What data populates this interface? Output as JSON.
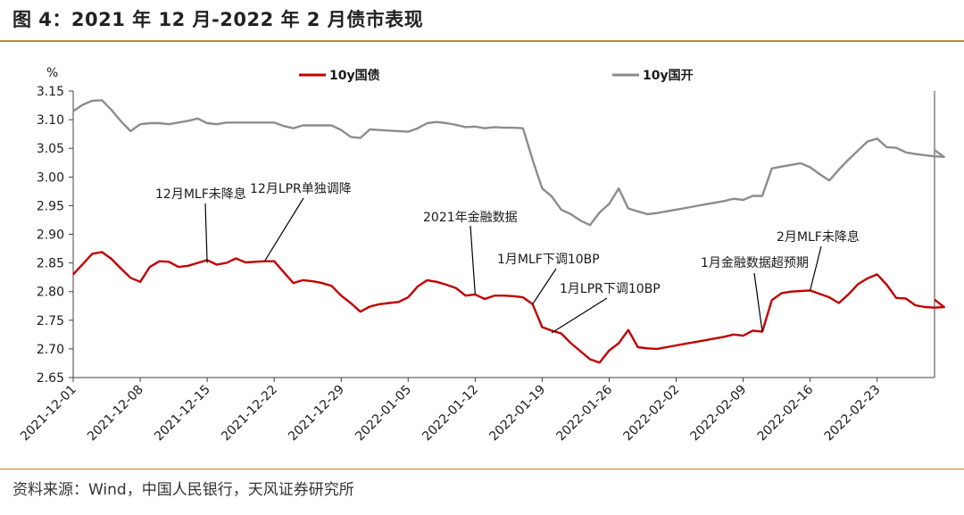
{
  "figure": {
    "title": "图 4：2021 年 12 月-2022 年 2 月债市表现",
    "source": "资料来源：Wind，中国人民银行，天风证券研究所"
  },
  "colors": {
    "red": "#c00000",
    "gray": "#8c8c8c",
    "accent_rule": "#c8843b"
  },
  "chart_data": {
    "type": "line",
    "ylabel": "%",
    "ylim": [
      2.65,
      3.15
    ],
    "yticks": [
      "3.15",
      "3.10",
      "3.05",
      "3.00",
      "2.95",
      "2.90",
      "2.85",
      "2.80",
      "2.75",
      "2.70",
      "2.65"
    ],
    "xrange": [
      "2021-12-01",
      "2022-03-01"
    ],
    "xticks": [
      "2021-12-01",
      "2021-12-08",
      "2021-12-15",
      "2021-12-22",
      "2021-12-29",
      "2022-01-05",
      "2022-01-12",
      "2022-01-19",
      "2022-01-26",
      "2022-02-02",
      "2022-02-09",
      "2022-02-16",
      "2022-02-23"
    ],
    "legend_position": "top",
    "grid": false,
    "series": [
      {
        "name": "10y国债",
        "color": "#c00000",
        "points": [
          [
            "2021-12-01",
            2.83
          ],
          [
            "2021-12-02",
            2.848
          ],
          [
            "2021-12-03",
            2.866
          ],
          [
            "2021-12-04",
            2.869
          ],
          [
            "2021-12-05",
            2.857
          ],
          [
            "2021-12-06",
            2.84
          ],
          [
            "2021-12-07",
            2.824
          ],
          [
            "2021-12-08",
            2.817
          ],
          [
            "2021-12-09",
            2.843
          ],
          [
            "2021-12-10",
            2.853
          ],
          [
            "2021-12-11",
            2.852
          ],
          [
            "2021-12-12",
            2.843
          ],
          [
            "2021-12-13",
            2.845
          ],
          [
            "2021-12-14",
            2.85
          ],
          [
            "2021-12-15",
            2.855
          ],
          [
            "2021-12-16",
            2.847
          ],
          [
            "2021-12-17",
            2.85
          ],
          [
            "2021-12-18",
            2.858
          ],
          [
            "2021-12-19",
            2.851
          ],
          [
            "2021-12-20",
            2.852
          ],
          [
            "2021-12-21",
            2.853
          ],
          [
            "2021-12-22",
            2.853
          ],
          [
            "2021-12-23",
            2.834
          ],
          [
            "2021-12-24",
            2.815
          ],
          [
            "2021-12-25",
            2.82
          ],
          [
            "2021-12-26",
            2.818
          ],
          [
            "2021-12-27",
            2.815
          ],
          [
            "2021-12-28",
            2.81
          ],
          [
            "2021-12-29",
            2.793
          ],
          [
            "2021-12-30",
            2.78
          ],
          [
            "2021-12-31",
            2.765
          ],
          [
            "2022-01-01",
            2.774
          ],
          [
            "2022-01-02",
            2.778
          ],
          [
            "2022-01-03",
            2.78
          ],
          [
            "2022-01-04",
            2.782
          ],
          [
            "2022-01-05",
            2.79
          ],
          [
            "2022-01-06",
            2.809
          ],
          [
            "2022-01-07",
            2.82
          ],
          [
            "2022-01-08",
            2.817
          ],
          [
            "2022-01-09",
            2.812
          ],
          [
            "2022-01-10",
            2.806
          ],
          [
            "2022-01-11",
            2.793
          ],
          [
            "2022-01-12",
            2.795
          ],
          [
            "2022-01-13",
            2.787
          ],
          [
            "2022-01-14",
            2.793
          ],
          [
            "2022-01-15",
            2.793
          ],
          [
            "2022-01-16",
            2.792
          ],
          [
            "2022-01-17",
            2.79
          ],
          [
            "2022-01-18",
            2.778
          ],
          [
            "2022-01-19",
            2.738
          ],
          [
            "2022-01-20",
            2.732
          ],
          [
            "2022-01-21",
            2.727
          ],
          [
            "2022-01-22",
            2.71
          ],
          [
            "2022-01-23",
            2.696
          ],
          [
            "2022-01-24",
            2.682
          ],
          [
            "2022-01-25",
            2.676
          ],
          [
            "2022-01-26",
            2.697
          ],
          [
            "2022-01-27",
            2.71
          ],
          [
            "2022-01-28",
            2.733
          ],
          [
            "2022-01-29",
            2.703
          ],
          [
            "2022-01-30",
            2.701
          ],
          [
            "2022-01-31",
            2.7
          ],
          [
            "2022-02-01",
            2.703
          ],
          [
            "2022-02-02",
            2.706
          ],
          [
            "2022-02-03",
            2.709
          ],
          [
            "2022-02-04",
            2.712
          ],
          [
            "2022-02-05",
            2.715
          ],
          [
            "2022-02-06",
            2.718
          ],
          [
            "2022-02-07",
            2.721
          ],
          [
            "2022-02-08",
            2.725
          ],
          [
            "2022-02-09",
            2.723
          ],
          [
            "2022-02-10",
            2.732
          ],
          [
            "2022-02-11",
            2.73
          ],
          [
            "2022-02-12",
            2.785
          ],
          [
            "2022-02-13",
            2.797
          ],
          [
            "2022-02-14",
            2.8
          ],
          [
            "2022-02-15",
            2.801
          ],
          [
            "2022-02-16",
            2.802
          ],
          [
            "2022-02-17",
            2.796
          ],
          [
            "2022-02-18",
            2.79
          ],
          [
            "2022-02-19",
            2.78
          ],
          [
            "2022-02-20",
            2.795
          ],
          [
            "2022-02-21",
            2.813
          ],
          [
            "2022-02-22",
            2.823
          ],
          [
            "2022-02-23",
            2.83
          ],
          [
            "2022-02-24",
            2.812
          ],
          [
            "2022-02-25",
            2.789
          ],
          [
            "2022-02-26",
            2.788
          ],
          [
            "2022-02-27",
            2.776
          ],
          [
            "2022-02-28",
            2.773
          ],
          [
            "2022-02-29",
            2.772
          ],
          [
            "2022-02-30",
            2.773
          ],
          [
            "2022-03-01",
            2.786
          ]
        ]
      },
      {
        "name": "10y国开",
        "color": "#8c8c8c",
        "points": [
          [
            "2021-12-01",
            3.115
          ],
          [
            "2021-12-02",
            3.126
          ],
          [
            "2021-12-03",
            3.133
          ],
          [
            "2021-12-04",
            3.134
          ],
          [
            "2021-12-05",
            3.117
          ],
          [
            "2021-12-06",
            3.097
          ],
          [
            "2021-12-07",
            3.08
          ],
          [
            "2021-12-08",
            3.092
          ],
          [
            "2021-12-09",
            3.094
          ],
          [
            "2021-12-10",
            3.094
          ],
          [
            "2021-12-11",
            3.092
          ],
          [
            "2021-12-12",
            3.095
          ],
          [
            "2021-12-13",
            3.098
          ],
          [
            "2021-12-14",
            3.102
          ],
          [
            "2021-12-15",
            3.094
          ],
          [
            "2021-12-16",
            3.092
          ],
          [
            "2021-12-17",
            3.095
          ],
          [
            "2021-12-18",
            3.095
          ],
          [
            "2021-12-19",
            3.095
          ],
          [
            "2021-12-20",
            3.095
          ],
          [
            "2021-12-21",
            3.095
          ],
          [
            "2021-12-22",
            3.095
          ],
          [
            "2021-12-23",
            3.089
          ],
          [
            "2021-12-24",
            3.085
          ],
          [
            "2021-12-25",
            3.09
          ],
          [
            "2021-12-26",
            3.09
          ],
          [
            "2021-12-27",
            3.09
          ],
          [
            "2021-12-28",
            3.09
          ],
          [
            "2021-12-29",
            3.082
          ],
          [
            "2021-12-30",
            3.07
          ],
          [
            "2021-12-31",
            3.068
          ],
          [
            "2022-01-01",
            3.083
          ],
          [
            "2022-01-02",
            3.082
          ],
          [
            "2022-01-03",
            3.081
          ],
          [
            "2022-01-04",
            3.08
          ],
          [
            "2022-01-05",
            3.079
          ],
          [
            "2022-01-06",
            3.085
          ],
          [
            "2022-01-07",
            3.094
          ],
          [
            "2022-01-08",
            3.096
          ],
          [
            "2022-01-09",
            3.094
          ],
          [
            "2022-01-10",
            3.091
          ],
          [
            "2022-01-11",
            3.087
          ],
          [
            "2022-01-12",
            3.088
          ],
          [
            "2022-01-13",
            3.085
          ],
          [
            "2022-01-14",
            3.087
          ],
          [
            "2022-01-15",
            3.086
          ],
          [
            "2022-01-16",
            3.086
          ],
          [
            "2022-01-17",
            3.085
          ],
          [
            "2022-01-18",
            3.03
          ],
          [
            "2022-01-19",
            2.98
          ],
          [
            "2022-01-20",
            2.966
          ],
          [
            "2022-01-21",
            2.943
          ],
          [
            "2022-01-22",
            2.935
          ],
          [
            "2022-01-23",
            2.924
          ],
          [
            "2022-01-24",
            2.916
          ],
          [
            "2022-01-25",
            2.938
          ],
          [
            "2022-01-26",
            2.953
          ],
          [
            "2022-01-27",
            2.98
          ],
          [
            "2022-01-28",
            2.945
          ],
          [
            "2022-01-29",
            2.94
          ],
          [
            "2022-01-30",
            2.935
          ],
          [
            "2022-01-31",
            2.937
          ],
          [
            "2022-02-01",
            2.94
          ],
          [
            "2022-02-02",
            2.943
          ],
          [
            "2022-02-03",
            2.946
          ],
          [
            "2022-02-04",
            2.949
          ],
          [
            "2022-02-05",
            2.952
          ],
          [
            "2022-02-06",
            2.955
          ],
          [
            "2022-02-07",
            2.958
          ],
          [
            "2022-02-08",
            2.962
          ],
          [
            "2022-02-09",
            2.96
          ],
          [
            "2022-02-10",
            2.967
          ],
          [
            "2022-02-11",
            2.967
          ],
          [
            "2022-02-12",
            3.015
          ],
          [
            "2022-02-13",
            3.018
          ],
          [
            "2022-02-14",
            3.021
          ],
          [
            "2022-02-15",
            3.024
          ],
          [
            "2022-02-16",
            3.017
          ],
          [
            "2022-02-17",
            3.005
          ],
          [
            "2022-02-18",
            2.994
          ],
          [
            "2022-02-19",
            3.013
          ],
          [
            "2022-02-20",
            3.03
          ],
          [
            "2022-02-21",
            3.046
          ],
          [
            "2022-02-22",
            3.062
          ],
          [
            "2022-02-23",
            3.067
          ],
          [
            "2022-02-24",
            3.052
          ],
          [
            "2022-02-25",
            3.051
          ],
          [
            "2022-02-26",
            3.043
          ],
          [
            "2022-02-27",
            3.04
          ],
          [
            "2022-02-28",
            3.038
          ],
          [
            "2022-02-29",
            3.036
          ],
          [
            "2022-02-30",
            3.035
          ],
          [
            "2022-03-01",
            3.047
          ]
        ]
      }
    ],
    "annotations": [
      {
        "text": "12月MLF未降息",
        "date": "2021-12-15",
        "value": 2.85
      },
      {
        "text": "12月LPR单独调降",
        "date": "2021-12-21",
        "value": 2.853
      },
      {
        "text": "2021年金融数据",
        "date": "2022-01-12",
        "value": 2.795
      },
      {
        "text": "1月MLF下调10BP",
        "date": "2022-01-18",
        "value": 2.778
      },
      {
        "text": "1月LPR下调10BP",
        "date": "2022-01-20",
        "value": 2.728
      },
      {
        "text": "1月金融数据超预期",
        "date": "2022-02-11",
        "value": 2.73
      },
      {
        "text": "2月MLF未降息",
        "date": "2022-02-16",
        "value": 2.802
      }
    ]
  }
}
